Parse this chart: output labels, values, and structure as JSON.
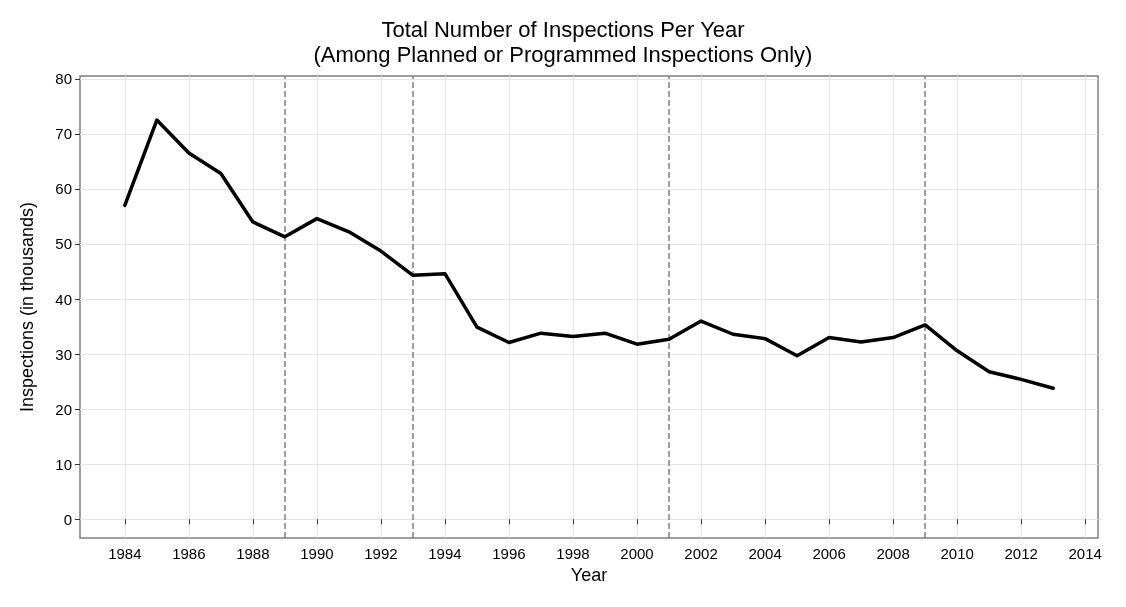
{
  "chart_data": {
    "type": "line",
    "title": "Total Number of Inspections Per Year\n(Among Planned or Programmed Inspections Only)",
    "xlabel": "Year",
    "ylabel": "Inspections (in thousands)",
    "x": [
      1984,
      1985,
      1986,
      1987,
      1988,
      1989,
      1990,
      1991,
      1992,
      1993,
      1994,
      1995,
      1996,
      1997,
      1998,
      1999,
      2000,
      2001,
      2002,
      2003,
      2004,
      2005,
      2006,
      2007,
      2008,
      2009,
      2010,
      2011,
      2012,
      2013
    ],
    "series": [
      {
        "color": "#000000",
        "values": [
          57,
          72.5,
          66.5,
          62.8,
          54,
          51.3,
          54.6,
          52.2,
          48.7,
          44.3,
          44.6,
          34.9,
          32.1,
          33.8,
          33.2,
          33.8,
          31.8,
          32.7,
          36,
          33.6,
          32.8,
          29.7,
          33,
          32.2,
          33,
          35.3,
          30.6,
          26.8,
          25.4,
          23.8
        ]
      }
    ],
    "xlim": [
      1982.6,
      2014.4
    ],
    "xticks": [
      1984,
      1986,
      1988,
      1990,
      1992,
      1994,
      1996,
      1998,
      2000,
      2002,
      2004,
      2006,
      2008,
      2010,
      2012,
      2014
    ],
    "ylim": [
      -3.4,
      80.5
    ],
    "yticks": [
      0,
      10,
      20,
      30,
      40,
      50,
      60,
      70,
      80
    ],
    "ref_lines": [
      {
        "axis": "x",
        "value": 1989,
        "color": "#7f7f7f",
        "line_style": "dashed"
      },
      {
        "axis": "x",
        "value": 1993,
        "color": "#7f7f7f",
        "line_style": "dashed"
      },
      {
        "axis": "x",
        "value": 2001,
        "color": "#7f7f7f",
        "line_style": "dashed"
      },
      {
        "axis": "x",
        "value": 2009,
        "color": "#7f7f7f",
        "line_style": "dashed"
      }
    ],
    "grid": true,
    "marker": "none",
    "line_style": "solid"
  }
}
